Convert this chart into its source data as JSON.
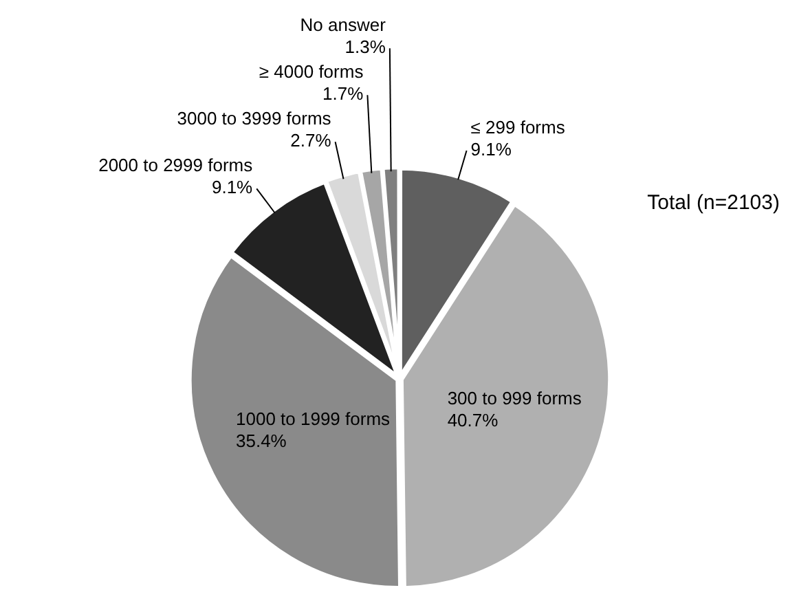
{
  "chart_data": {
    "type": "pie",
    "categories": [
      "≤ 299 forms",
      "300 to 999 forms",
      "1000 to 1999 forms",
      "2000 to 2999 forms",
      "3000 to 3999 forms",
      "≥ 4000 forms",
      "No answer"
    ],
    "values": [
      9.1,
      40.7,
      35.4,
      9.1,
      2.7,
      1.7,
      1.3
    ],
    "value_labels": [
      "9.1%",
      "40.7%",
      "35.4%",
      "9.1%",
      "2.7%",
      "1.7%",
      "1.3%"
    ],
    "colors": [
      "#5f5f5f",
      "#b0b0b0",
      "#8a8a8a",
      "#222222",
      "#d9d9d9",
      "#a6a6a6",
      "#7f7f7f"
    ],
    "annotations": [
      "Total (n=2103)"
    ],
    "legend": false
  }
}
